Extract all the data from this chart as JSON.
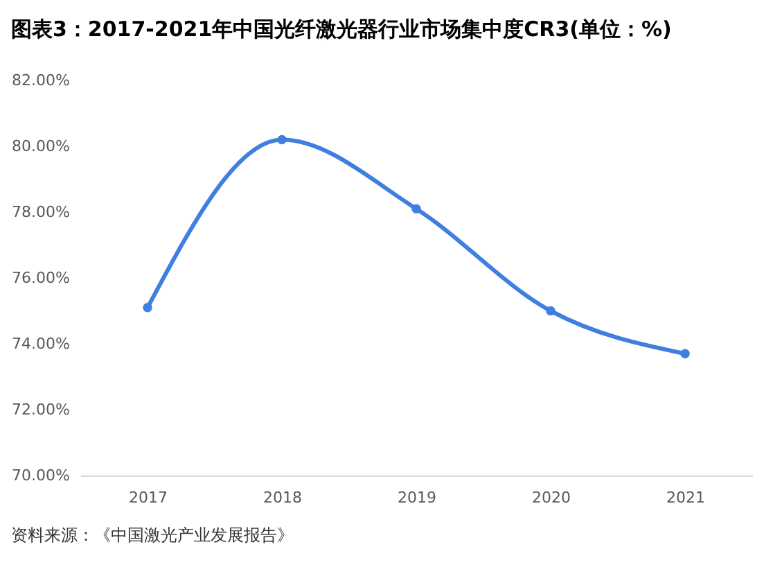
{
  "chart_data": {
    "type": "line",
    "title": "图表3：2017-2021年中国光纤激光器行业市场集中度CR3(单位：%)",
    "categories": [
      "2017",
      "2018",
      "2019",
      "2020",
      "2021"
    ],
    "values": [
      75.1,
      80.2,
      78.1,
      75.0,
      73.7
    ],
    "color": "#3f7fe0",
    "ylim": [
      70,
      82
    ],
    "yticks": [
      {
        "value": 70,
        "label": "70.00%"
      },
      {
        "value": 72,
        "label": "72.00%"
      },
      {
        "value": 74,
        "label": "74.00%"
      },
      {
        "value": 76,
        "label": "76.00%"
      },
      {
        "value": 78,
        "label": "78.00%"
      },
      {
        "value": 80,
        "label": "80.00%"
      },
      {
        "value": 82,
        "label": "82.00%"
      }
    ],
    "marker": "circle",
    "grid": false,
    "annotations": [
      "资料来源：《中国激光产业发展报告》"
    ]
  }
}
